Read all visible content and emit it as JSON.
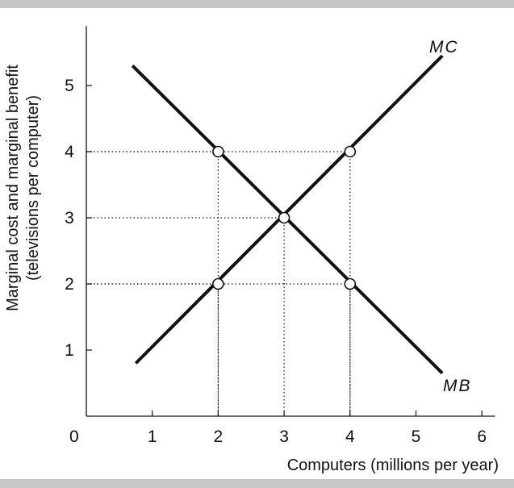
{
  "chart_data": {
    "type": "line",
    "xlabel": "Computers (millions per year)",
    "ylabel_line1": "Marginal cost and marginal benefit",
    "ylabel_line2": "(televisions per computer)",
    "origin_label": "0",
    "xlim": [
      0,
      6.2
    ],
    "ylim": [
      0,
      5.9
    ],
    "x_ticks": [
      1,
      2,
      3,
      4,
      5,
      6
    ],
    "y_ticks": [
      1,
      2,
      3,
      4,
      5
    ],
    "series": [
      {
        "name": "MC",
        "x": [
          0.75,
          5.4
        ],
        "y": [
          0.8,
          5.45
        ]
      },
      {
        "name": "MB",
        "x": [
          0.7,
          5.4
        ],
        "y": [
          5.3,
          0.65
        ]
      }
    ],
    "points": [
      {
        "x": 2,
        "y": 4
      },
      {
        "x": 4,
        "y": 4
      },
      {
        "x": 3,
        "y": 3
      },
      {
        "x": 2,
        "y": 2
      },
      {
        "x": 4,
        "y": 2
      }
    ],
    "guide_lines": [
      {
        "x": 2,
        "y": 4
      },
      {
        "x": 4,
        "y": 4
      },
      {
        "x": 3,
        "y": 3
      },
      {
        "x": 2,
        "y": 2
      },
      {
        "x": 4,
        "y": 2
      }
    ],
    "grid": false,
    "legend": "none",
    "colors": {
      "line": "#111111",
      "point_fill": "#ffffff",
      "band": "#c6c7c9"
    }
  }
}
